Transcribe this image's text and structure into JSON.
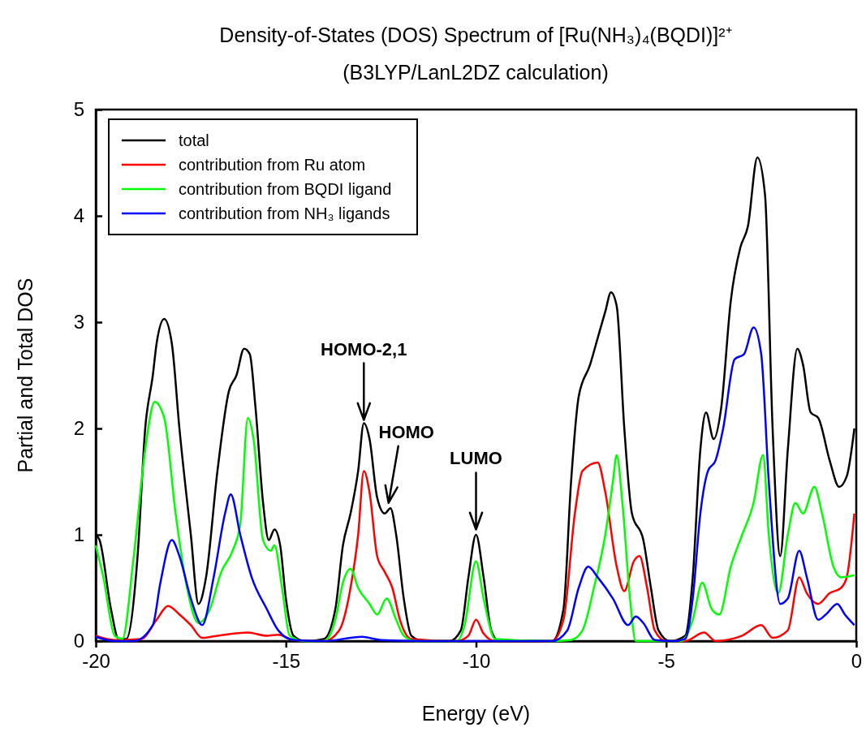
{
  "chart_data": {
    "type": "line",
    "title": "Density-of-States (DOS) Spectrum of [Ru(NH₃)₄(BQDI)]²⁺",
    "subtitle": "(B3LYP/LanL2DZ calculation)",
    "xlabel": "Energy (eV)",
    "ylabel": "Partial and Total DOS",
    "xlim": [
      -20,
      0
    ],
    "xticks": [
      -20,
      -15,
      -10,
      -5,
      0
    ],
    "ylim": [
      0,
      5
    ],
    "yticks": [
      0,
      1,
      2,
      3,
      4,
      5
    ],
    "grid": false,
    "legend": "top left",
    "marker": "none",
    "line_style": "solid",
    "annotations": [
      {
        "text": "HOMO-2,1",
        "x": -12.95,
        "y": 2.08
      },
      {
        "text": "HOMO",
        "x": -12.3,
        "y": 1.3
      },
      {
        "text": "LUMO",
        "x": -10,
        "y": 1.05
      }
    ],
    "series": [
      {
        "name": "total",
        "color": "#000000",
        "x": [
          -20,
          -19.9,
          -19.6,
          -19.4,
          -19.2,
          -18.9,
          -18.7,
          -18.5,
          -18.4,
          -18.2,
          -18.0,
          -17.8,
          -17.5,
          -17.3,
          -17.1,
          -16.8,
          -16.5,
          -16.3,
          -16.1,
          -15.95,
          -15.8,
          -15.6,
          -15.45,
          -15.3,
          -15.15,
          -15.0,
          -14.8,
          -14.5,
          -14.0,
          -13.7,
          -13.5,
          -13.3,
          -13.1,
          -12.95,
          -12.8,
          -12.6,
          -12.4,
          -12.25,
          -12.1,
          -11.9,
          -11.7,
          -11.4,
          -10.7,
          -10.4,
          -10.2,
          -10.0,
          -9.8,
          -9.6,
          -9.4,
          -8.0,
          -7.7,
          -7.5,
          -7.3,
          -7.0,
          -6.8,
          -6.6,
          -6.45,
          -6.3,
          -6.1,
          -5.9,
          -5.6,
          -5.4,
          -5.2,
          -4.9,
          -4.5,
          -4.3,
          -4.1,
          -3.95,
          -3.75,
          -3.55,
          -3.3,
          -3.05,
          -2.85,
          -2.6,
          -2.4,
          -2.2,
          -2.0,
          -1.8,
          -1.55,
          -1.4,
          -1.2,
          -1.0,
          -0.7,
          -0.45,
          -0.25,
          -0.05
        ],
        "values": [
          1.0,
          0.95,
          0.3,
          0.02,
          0.02,
          0.8,
          2.0,
          2.5,
          2.8,
          3.03,
          2.8,
          2.0,
          1.0,
          0.35,
          0.6,
          1.6,
          2.35,
          2.5,
          2.75,
          2.7,
          2.2,
          1.3,
          0.95,
          1.05,
          0.9,
          0.4,
          0.05,
          0,
          0.02,
          0.3,
          0.9,
          1.2,
          1.6,
          2.05,
          1.9,
          1.35,
          1.2,
          1.25,
          1.0,
          0.4,
          0.05,
          0,
          0,
          0.1,
          0.6,
          1.0,
          0.6,
          0.1,
          0,
          0,
          0.3,
          1.5,
          2.3,
          2.6,
          2.85,
          3.1,
          3.28,
          3.15,
          2.0,
          1.2,
          0.95,
          0.5,
          0.1,
          0,
          0.05,
          0.6,
          1.8,
          2.15,
          1.9,
          2.2,
          3.2,
          3.7,
          3.9,
          4.55,
          4.2,
          2.0,
          0.8,
          1.8,
          2.75,
          2.6,
          2.15,
          2.1,
          1.7,
          1.45,
          1.55,
          2.0
        ]
      },
      {
        "name": "contribution from Ru atom",
        "color": "#ff0000",
        "x": [
          -20,
          -19.5,
          -18.8,
          -18.4,
          -18.1,
          -17.8,
          -17.5,
          -17.2,
          -16.8,
          -16.0,
          -15.5,
          -15.2,
          -14.8,
          -14.0,
          -13.6,
          -13.3,
          -13.1,
          -12.95,
          -12.8,
          -12.6,
          -12.4,
          -12.2,
          -12.0,
          -11.7,
          -10.5,
          -10.2,
          -10.0,
          -9.8,
          -9.5,
          -8.0,
          -7.7,
          -7.4,
          -7.2,
          -6.8,
          -6.6,
          -6.3,
          -6.1,
          -5.85,
          -5.7,
          -5.5,
          -5.3,
          -5.0,
          -4.5,
          -4.0,
          -3.7,
          -3.0,
          -2.5,
          -2.2,
          -1.8,
          -1.5,
          -1.3,
          -1.0,
          -0.7,
          -0.4,
          -0.25,
          -0.05
        ],
        "values": [
          0.05,
          0.01,
          0.02,
          0.2,
          0.33,
          0.25,
          0.15,
          0.03,
          0.05,
          0.08,
          0.05,
          0.06,
          0.01,
          0,
          0.1,
          0.5,
          1.0,
          1.6,
          1.4,
          0.8,
          0.65,
          0.5,
          0.2,
          0.02,
          0,
          0.05,
          0.2,
          0.07,
          0,
          0,
          0.2,
          1.2,
          1.6,
          1.68,
          1.4,
          0.7,
          0.47,
          0.75,
          0.8,
          0.5,
          0.1,
          0,
          0,
          0.08,
          0,
          0.05,
          0.15,
          0.03,
          0.1,
          0.6,
          0.45,
          0.35,
          0.45,
          0.5,
          0.6,
          1.2
        ]
      },
      {
        "name": "contribution from BQDI ligand",
        "color": "#00ff00",
        "x": [
          -20,
          -19.8,
          -19.5,
          -19.3,
          -19.0,
          -18.7,
          -18.45,
          -18.2,
          -17.9,
          -17.6,
          -17.3,
          -17.0,
          -16.7,
          -16.4,
          -16.2,
          -16.0,
          -15.85,
          -15.6,
          -15.4,
          -15.3,
          -15.1,
          -14.9,
          -14.5,
          -14.0,
          -13.7,
          -13.5,
          -13.3,
          -13.1,
          -12.8,
          -12.6,
          -12.35,
          -12.1,
          -11.9,
          -11.6,
          -10.5,
          -10.3,
          -10.0,
          -9.8,
          -9.5,
          -8.0,
          -7.5,
          -7.2,
          -6.9,
          -6.6,
          -6.4,
          -6.3,
          -6.15,
          -5.95,
          -5.8,
          -4.6,
          -4.3,
          -4.05,
          -3.8,
          -3.6,
          -3.3,
          -3.0,
          -2.7,
          -2.45,
          -2.3,
          -2.05,
          -1.8,
          -1.6,
          -1.4,
          -1.1,
          -0.9,
          -0.6,
          -0.4,
          -0.05
        ],
        "values": [
          0.9,
          0.6,
          0.05,
          0.02,
          0.8,
          1.8,
          2.25,
          2.1,
          1.2,
          0.5,
          0.17,
          0.3,
          0.65,
          0.85,
          1.1,
          2.1,
          1.9,
          0.95,
          0.85,
          0.9,
          0.5,
          0.05,
          0,
          0,
          0.2,
          0.55,
          0.68,
          0.5,
          0.35,
          0.25,
          0.4,
          0.2,
          0.05,
          0,
          0,
          0.15,
          0.75,
          0.4,
          0.02,
          0,
          0.01,
          0.1,
          0.5,
          1.0,
          1.5,
          1.75,
          1.3,
          0.4,
          0,
          0,
          0.2,
          0.55,
          0.3,
          0.25,
          0.7,
          1.0,
          1.3,
          1.75,
          1.0,
          0.45,
          1.0,
          1.3,
          1.2,
          1.45,
          1.2,
          0.7,
          0.6,
          0.62
        ]
      },
      {
        "name": "contribution from NH₃ ligands",
        "color": "#0000ff",
        "x": [
          -20,
          -19.5,
          -19.0,
          -18.5,
          -18.3,
          -18.0,
          -17.8,
          -17.5,
          -17.2,
          -16.9,
          -16.6,
          -16.45,
          -16.2,
          -15.9,
          -15.5,
          -15.2,
          -14.8,
          -14.0,
          -13.0,
          -12.5,
          -11.0,
          -8.0,
          -7.6,
          -7.3,
          -7.05,
          -6.8,
          -6.4,
          -6.0,
          -5.8,
          -5.6,
          -5.3,
          -4.8,
          -4.5,
          -4.3,
          -4.1,
          -3.9,
          -3.7,
          -3.5,
          -3.2,
          -2.95,
          -2.7,
          -2.5,
          -2.3,
          -2.0,
          -1.8,
          -1.5,
          -1.3,
          -1.0,
          -0.8,
          -0.5,
          -0.3,
          -0.05
        ],
        "values": [
          0.04,
          0,
          0,
          0.15,
          0.55,
          0.95,
          0.8,
          0.4,
          0.15,
          0.6,
          1.2,
          1.38,
          1.0,
          0.6,
          0.3,
          0.1,
          0.01,
          0,
          0.04,
          0.01,
          0,
          0,
          0.1,
          0.5,
          0.7,
          0.6,
          0.4,
          0.15,
          0.23,
          0.17,
          0.01,
          0,
          0.02,
          0.4,
          1.2,
          1.6,
          1.7,
          2.0,
          2.65,
          2.7,
          2.95,
          2.7,
          1.5,
          0.35,
          0.4,
          0.85,
          0.6,
          0.2,
          0.25,
          0.35,
          0.25,
          0.15
        ]
      }
    ]
  }
}
